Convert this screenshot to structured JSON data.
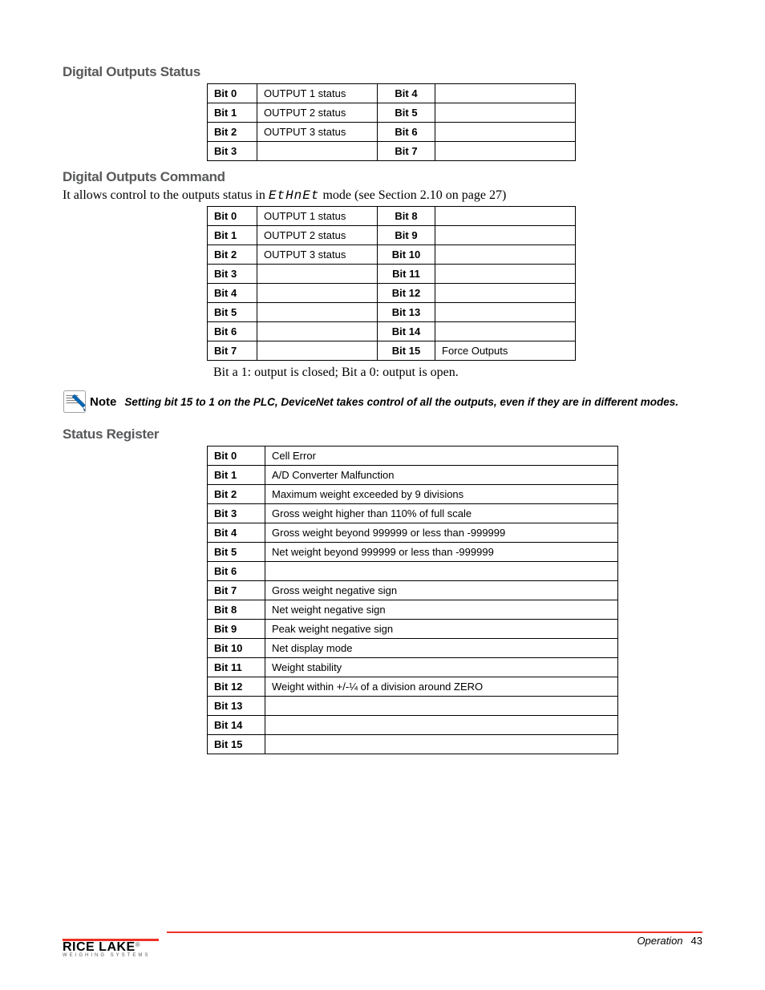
{
  "sections": {
    "digital_outputs_status": {
      "heading": "Digital Outputs Status",
      "table": {
        "rows": [
          {
            "c1": "Bit 0",
            "c2": "OUTPUT 1 status",
            "c3": "Bit 4",
            "c4": ""
          },
          {
            "c1": "Bit 1",
            "c2": "OUTPUT 2 status",
            "c3": "Bit 5",
            "c4": ""
          },
          {
            "c1": "Bit 2",
            "c2": "OUTPUT 3 status",
            "c3": "Bit 6",
            "c4": ""
          },
          {
            "c1": "Bit 3",
            "c2": "",
            "c3": "Bit 7",
            "c4": ""
          }
        ]
      }
    },
    "digital_outputs_command": {
      "heading": "Digital Outputs Command",
      "body_pre": "It allows control to the outputs status in ",
      "body_mode": "EtHnEt",
      "body_post": " mode (see Section 2.10 on page 27)",
      "table": {
        "rows": [
          {
            "c1": "Bit 0",
            "c2": "OUTPUT 1 status",
            "c3": "Bit 8",
            "c4": ""
          },
          {
            "c1": "Bit 1",
            "c2": "OUTPUT 2 status",
            "c3": "Bit 9",
            "c4": ""
          },
          {
            "c1": "Bit 2",
            "c2": "OUTPUT 3 status",
            "c3": "Bit 10",
            "c4": ""
          },
          {
            "c1": "Bit 3",
            "c2": "",
            "c3": "Bit 11",
            "c4": ""
          },
          {
            "c1": "Bit 4",
            "c2": "",
            "c3": "Bit 12",
            "c4": ""
          },
          {
            "c1": "Bit 5",
            "c2": "",
            "c3": "Bit 13",
            "c4": ""
          },
          {
            "c1": "Bit 6",
            "c2": "",
            "c3": "Bit 14",
            "c4": ""
          },
          {
            "c1": "Bit 7",
            "c2": "",
            "c3": "Bit 15",
            "c4": "Force Outputs"
          }
        ]
      },
      "caption": "Bit a 1: output is closed; Bit a 0: output is open."
    },
    "note": {
      "label": "Note",
      "text": "Setting bit 15 to 1 on the PLC, DeviceNet takes control of all the outputs, even if they are in different modes."
    },
    "status_register": {
      "heading": "Status Register",
      "table": {
        "rows": [
          {
            "bit": "Bit 0",
            "desc": "Cell Error"
          },
          {
            "bit": "Bit 1",
            "desc": "A/D Converter Malfunction"
          },
          {
            "bit": "Bit 2",
            "desc": "Maximum weight exceeded by 9 divisions"
          },
          {
            "bit": "Bit 3",
            "desc": "Gross weight higher than 110% of full scale"
          },
          {
            "bit": "Bit 4",
            "desc": "Gross weight beyond 999999 or less than -999999"
          },
          {
            "bit": "Bit 5",
            "desc": "Net weight beyond 999999 or less than -999999"
          },
          {
            "bit": "Bit 6",
            "desc": ""
          },
          {
            "bit": "Bit 7",
            "desc": "Gross weight negative sign"
          },
          {
            "bit": "Bit 8",
            "desc": "Net weight negative sign"
          },
          {
            "bit": "Bit 9",
            "desc": "Peak weight negative sign"
          },
          {
            "bit": "Bit 10",
            "desc": "Net display mode"
          },
          {
            "bit": "Bit 11",
            "desc": "Weight stability"
          },
          {
            "bit": "Bit 12",
            "desc": "Weight within +/-¼ of a division around ZERO"
          },
          {
            "bit": "Bit 13",
            "desc": ""
          },
          {
            "bit": "Bit 14",
            "desc": ""
          },
          {
            "bit": "Bit 15",
            "desc": ""
          }
        ]
      }
    }
  },
  "footer": {
    "logo_main": "RICE LAKE",
    "logo_sub": "WEIGHING SYSTEMS",
    "section": "Operation",
    "page": "43"
  },
  "colors": {
    "heading_gray": "#58595b",
    "accent_red": "#ee3124",
    "black": "#000000",
    "white": "#ffffff"
  }
}
